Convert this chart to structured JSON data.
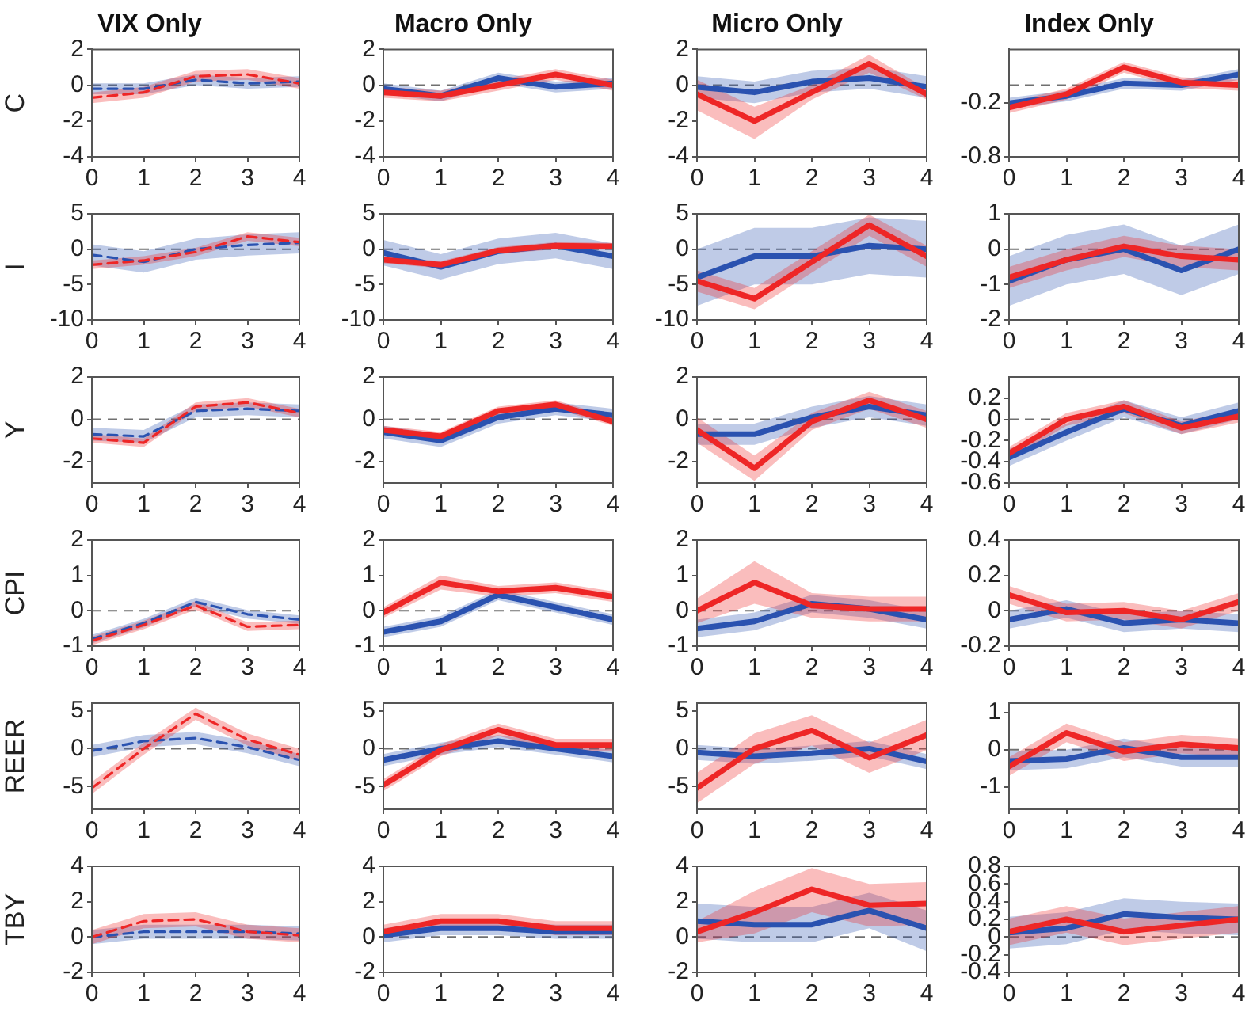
{
  "chart_data": [
    {
      "type": "line",
      "title": "VIX Only",
      "ylabel": "C",
      "x": [
        0,
        1,
        2,
        3,
        4
      ],
      "xlim": [
        0,
        4
      ],
      "xticks": [
        0,
        1,
        2,
        3,
        4
      ],
      "ylim": [
        -4,
        2
      ],
      "yticks": [
        -4,
        -2,
        0,
        2
      ],
      "line_style": "dashed",
      "ref_lines": [
        {
          "axis": "y",
          "value": 0,
          "color": "#707070",
          "line_style": "dashed"
        }
      ],
      "series": [
        {
          "color": "#2a52b0",
          "values": [
            -0.2,
            -0.2,
            0.3,
            0.1,
            0.2
          ],
          "lower": [
            -0.5,
            -0.5,
            0,
            -0.2,
            -0.1
          ],
          "upper": [
            0.1,
            0.1,
            0.6,
            0.4,
            0.5
          ]
        },
        {
          "color": "#ee2626",
          "values": [
            -0.7,
            -0.4,
            0.5,
            0.6,
            0.1
          ],
          "lower": [
            -1,
            -0.7,
            0.2,
            0.3,
            -0.2
          ],
          "upper": [
            -0.4,
            -0.1,
            0.8,
            0.9,
            0.4
          ]
        }
      ]
    },
    {
      "type": "line",
      "title": "Macro Only",
      "x": [
        0,
        1,
        2,
        3,
        4
      ],
      "xlim": [
        0,
        4
      ],
      "xticks": [
        0,
        1,
        2,
        3,
        4
      ],
      "ylim": [
        -4,
        2
      ],
      "yticks": [
        -4,
        -2,
        0,
        2
      ],
      "line_style": "solid",
      "ref_lines": [
        {
          "axis": "y",
          "value": 0,
          "color": "#707070",
          "line_style": "dashed"
        }
      ],
      "series": [
        {
          "color": "#2a52b0",
          "values": [
            -0.2,
            -0.6,
            0.4,
            -0.1,
            0.1
          ],
          "lower": [
            -0.5,
            -0.9,
            0.1,
            -0.4,
            -0.2
          ],
          "upper": [
            0.1,
            -0.3,
            0.7,
            0.2,
            0.4
          ]
        },
        {
          "color": "#ee2626",
          "values": [
            -0.4,
            -0.6,
            0,
            0.6,
            0
          ],
          "lower": [
            -0.7,
            -0.9,
            -0.3,
            0.3,
            -0.3
          ],
          "upper": [
            -0.1,
            -0.3,
            0.3,
            0.9,
            0.3
          ]
        }
      ]
    },
    {
      "type": "line",
      "title": "Micro Only",
      "x": [
        0,
        1,
        2,
        3,
        4
      ],
      "xlim": [
        0,
        4
      ],
      "xticks": [
        0,
        1,
        2,
        3,
        4
      ],
      "ylim": [
        -4,
        2
      ],
      "yticks": [
        -4,
        -2,
        0,
        2
      ],
      "line_style": "solid",
      "ref_lines": [
        {
          "axis": "y",
          "value": 0,
          "color": "#707070",
          "line_style": "dashed"
        }
      ],
      "series": [
        {
          "color": "#2a52b0",
          "values": [
            -0.1,
            -0.4,
            0.2,
            0.4,
            -0.1
          ],
          "lower": [
            -0.7,
            -1,
            -0.4,
            -0.2,
            -0.7
          ],
          "upper": [
            0.5,
            0.2,
            0.8,
            1,
            0.5
          ]
        },
        {
          "color": "#ee2626",
          "values": [
            -0.5,
            -2,
            -0.4,
            1.2,
            -0.5
          ],
          "lower": [
            -1.4,
            -3,
            -0.8,
            0.7,
            -0.8
          ],
          "upper": [
            0.3,
            -1.2,
            0,
            1.7,
            -0.2
          ]
        }
      ]
    },
    {
      "type": "line",
      "title": "Index Only",
      "x": [
        0,
        1,
        2,
        3,
        4
      ],
      "xlim": [
        0,
        4
      ],
      "xticks": [
        0,
        1,
        2,
        3,
        4
      ],
      "ylim": [
        -0.8,
        0.4
      ],
      "yticks": [
        -0.8,
        -0.2
      ],
      "line_style": "solid",
      "ref_lines": [
        {
          "axis": "y",
          "value": 0,
          "color": "#707070",
          "line_style": "dashed"
        }
      ],
      "series": [
        {
          "color": "#2a52b0",
          "values": [
            -0.2,
            -0.12,
            0.02,
            0,
            0.12
          ],
          "lower": [
            -0.26,
            -0.18,
            -0.04,
            -0.06,
            0.06
          ],
          "upper": [
            -0.14,
            -0.06,
            0.08,
            0.06,
            0.18
          ]
        },
        {
          "color": "#ee2626",
          "values": [
            -0.25,
            -0.1,
            0.2,
            0.03,
            0
          ],
          "lower": [
            -0.31,
            -0.16,
            0.14,
            -0.03,
            -0.06
          ],
          "upper": [
            -0.19,
            -0.04,
            0.26,
            0.09,
            0.06
          ]
        }
      ]
    },
    {
      "type": "line",
      "ylabel": "I",
      "x": [
        0,
        1,
        2,
        3,
        4
      ],
      "xlim": [
        0,
        4
      ],
      "xticks": [
        0,
        1,
        2,
        3,
        4
      ],
      "ylim": [
        -10,
        5
      ],
      "yticks": [
        -10,
        -5,
        0,
        5
      ],
      "line_style": "dashed",
      "ref_lines": [
        {
          "axis": "y",
          "value": 0,
          "color": "#707070",
          "line_style": "dashed"
        }
      ],
      "series": [
        {
          "color": "#2a52b0",
          "values": [
            -0.8,
            -1.8,
            0,
            0.6,
            0.9
          ],
          "lower": [
            -2.3,
            -3.3,
            -1.5,
            -0.9,
            -0.6
          ],
          "upper": [
            0.7,
            -0.3,
            1.5,
            2.1,
            2.4
          ]
        },
        {
          "color": "#ee2626",
          "values": [
            -2.2,
            -1.6,
            -0.4,
            1.8,
            1
          ],
          "lower": [
            -2.8,
            -2.2,
            -1,
            1.2,
            0.4
          ],
          "upper": [
            -1.6,
            -1,
            0.2,
            2.4,
            1.6
          ]
        }
      ]
    },
    {
      "type": "line",
      "x": [
        0,
        1,
        2,
        3,
        4
      ],
      "xlim": [
        0,
        4
      ],
      "xticks": [
        0,
        1,
        2,
        3,
        4
      ],
      "ylim": [
        -10,
        5
      ],
      "yticks": [
        -10,
        -5,
        0,
        5
      ],
      "line_style": "solid",
      "ref_lines": [
        {
          "axis": "y",
          "value": 0,
          "color": "#707070",
          "line_style": "dashed"
        }
      ],
      "series": [
        {
          "color": "#2a52b0",
          "values": [
            -0.5,
            -2.5,
            -0.3,
            0.5,
            -1
          ],
          "lower": [
            -2.3,
            -4.3,
            -2.1,
            -1.3,
            -2.8
          ],
          "upper": [
            1.3,
            -0.7,
            1.5,
            2.3,
            0.8
          ]
        },
        {
          "color": "#ee2626",
          "values": [
            -1.5,
            -2.2,
            -0.2,
            0.5,
            0.4
          ],
          "lower": [
            -2,
            -2.7,
            -0.7,
            0,
            -0.1
          ],
          "upper": [
            -1,
            -1.7,
            0.3,
            1,
            0.9
          ]
        }
      ]
    },
    {
      "type": "line",
      "x": [
        0,
        1,
        2,
        3,
        4
      ],
      "xlim": [
        0,
        4
      ],
      "xticks": [
        0,
        1,
        2,
        3,
        4
      ],
      "ylim": [
        -10,
        5
      ],
      "yticks": [
        -10,
        -5,
        0,
        5
      ],
      "line_style": "solid",
      "ref_lines": [
        {
          "axis": "y",
          "value": 0,
          "color": "#707070",
          "line_style": "dashed"
        }
      ],
      "series": [
        {
          "color": "#2a52b0",
          "values": [
            -4,
            -1,
            -1,
            0.5,
            0
          ],
          "lower": [
            -8,
            -5,
            -5,
            -3.5,
            -4
          ],
          "upper": [
            0,
            3,
            3,
            4.5,
            4
          ]
        },
        {
          "color": "#ee2626",
          "values": [
            -4.5,
            -7,
            -1.8,
            3.4,
            -1
          ],
          "lower": [
            -6,
            -8.5,
            -3.3,
            1.9,
            -2.5
          ],
          "upper": [
            -3,
            -5.5,
            -0.3,
            4.9,
            0.5
          ]
        }
      ]
    },
    {
      "type": "line",
      "x": [
        0,
        1,
        2,
        3,
        4
      ],
      "xlim": [
        0,
        4
      ],
      "xticks": [
        0,
        1,
        2,
        3,
        4
      ],
      "ylim": [
        -2,
        1
      ],
      "yticks": [
        -2,
        -1,
        0,
        1
      ],
      "line_style": "solid",
      "ref_lines": [
        {
          "axis": "y",
          "value": 0,
          "color": "#707070",
          "line_style": "dashed"
        }
      ],
      "series": [
        {
          "color": "#2a52b0",
          "values": [
            -0.9,
            -0.3,
            0,
            -0.6,
            0
          ],
          "lower": [
            -1.6,
            -1,
            -0.7,
            -1.3,
            -0.7
          ],
          "upper": [
            -0.2,
            0.4,
            0.7,
            0.1,
            0.7
          ]
        },
        {
          "color": "#ee2626",
          "values": [
            -0.8,
            -0.3,
            0.08,
            -0.2,
            -0.3
          ],
          "lower": [
            -1.1,
            -0.6,
            -0.22,
            -0.5,
            -0.6
          ],
          "upper": [
            -0.5,
            0,
            0.38,
            0.1,
            0
          ]
        }
      ]
    },
    {
      "type": "line",
      "ylabel": "Y",
      "x": [
        0,
        1,
        2,
        3,
        4
      ],
      "xlim": [
        0,
        4
      ],
      "xticks": [
        0,
        1,
        2,
        3,
        4
      ],
      "ylim": [
        -3,
        2
      ],
      "yticks": [
        -2,
        0,
        2
      ],
      "line_style": "dashed",
      "ref_lines": [
        {
          "axis": "y",
          "value": 0,
          "color": "#707070",
          "line_style": "dashed"
        }
      ],
      "series": [
        {
          "color": "#2a52b0",
          "values": [
            -0.7,
            -0.8,
            0.4,
            0.5,
            0.4
          ],
          "lower": [
            -1,
            -1.1,
            0.1,
            0.2,
            0.1
          ],
          "upper": [
            -0.4,
            -0.5,
            0.7,
            0.8,
            0.7
          ]
        },
        {
          "color": "#ee2626",
          "values": [
            -0.9,
            -1.1,
            0.6,
            0.8,
            0.3
          ],
          "lower": [
            -1.1,
            -1.3,
            0.4,
            0.6,
            0.1
          ],
          "upper": [
            -0.7,
            -0.9,
            0.8,
            1,
            0.5
          ]
        }
      ]
    },
    {
      "type": "line",
      "x": [
        0,
        1,
        2,
        3,
        4
      ],
      "xlim": [
        0,
        4
      ],
      "xticks": [
        0,
        1,
        2,
        3,
        4
      ],
      "ylim": [
        -3,
        2
      ],
      "yticks": [
        -2,
        0,
        2
      ],
      "line_style": "solid",
      "ref_lines": [
        {
          "axis": "y",
          "value": 0,
          "color": "#707070",
          "line_style": "dashed"
        }
      ],
      "series": [
        {
          "color": "#2a52b0",
          "values": [
            -0.6,
            -1,
            0.1,
            0.5,
            0.2
          ],
          "lower": [
            -0.9,
            -1.3,
            -0.2,
            0.2,
            -0.1
          ],
          "upper": [
            -0.3,
            -0.7,
            0.4,
            0.8,
            0.5
          ]
        },
        {
          "color": "#ee2626",
          "values": [
            -0.5,
            -0.8,
            0.4,
            0.7,
            -0.1
          ],
          "lower": [
            -0.7,
            -1,
            0.2,
            0.5,
            -0.3
          ],
          "upper": [
            -0.3,
            -0.6,
            0.6,
            0.9,
            0.1
          ]
        }
      ]
    },
    {
      "type": "line",
      "x": [
        0,
        1,
        2,
        3,
        4
      ],
      "xlim": [
        0,
        4
      ],
      "xticks": [
        0,
        1,
        2,
        3,
        4
      ],
      "ylim": [
        -3,
        2
      ],
      "yticks": [
        -2,
        0,
        2
      ],
      "line_style": "solid",
      "ref_lines": [
        {
          "axis": "y",
          "value": 0,
          "color": "#707070",
          "line_style": "dashed"
        }
      ],
      "series": [
        {
          "color": "#2a52b0",
          "values": [
            -0.7,
            -0.7,
            0.1,
            0.6,
            0.2
          ],
          "lower": [
            -1.2,
            -1.2,
            -0.4,
            0.1,
            -0.3
          ],
          "upper": [
            -0.2,
            -0.2,
            0.6,
            1.1,
            0.7
          ]
        },
        {
          "color": "#ee2626",
          "values": [
            -0.5,
            -2.3,
            -0.1,
            0.9,
            0
          ],
          "lower": [
            -1.1,
            -2.9,
            -0.5,
            0.5,
            -0.4
          ],
          "upper": [
            0.1,
            -1.7,
            0.3,
            1.3,
            0.4
          ]
        }
      ]
    },
    {
      "type": "line",
      "x": [
        0,
        1,
        2,
        3,
        4
      ],
      "xlim": [
        0,
        4
      ],
      "xticks": [
        0,
        1,
        2,
        3,
        4
      ],
      "ylim": [
        -0.6,
        0.4
      ],
      "yticks": [
        -0.6,
        -0.4,
        -0.2,
        0,
        0.2
      ],
      "line_style": "solid",
      "ref_lines": [
        {
          "axis": "y",
          "value": 0,
          "color": "#707070",
          "line_style": "dashed"
        }
      ],
      "series": [
        {
          "color": "#2a52b0",
          "values": [
            -0.36,
            -0.12,
            0.1,
            -0.06,
            0.08
          ],
          "lower": [
            -0.44,
            -0.2,
            0.02,
            -0.14,
            0
          ],
          "upper": [
            -0.28,
            -0.04,
            0.18,
            0.02,
            0.16
          ]
        },
        {
          "color": "#ee2626",
          "values": [
            -0.32,
            0,
            0.12,
            -0.08,
            0.03
          ],
          "lower": [
            -0.38,
            -0.06,
            0.06,
            -0.14,
            -0.03
          ],
          "upper": [
            -0.26,
            0.06,
            0.18,
            -0.02,
            0.09
          ]
        }
      ]
    },
    {
      "type": "line",
      "ylabel": "CPI",
      "x": [
        0,
        1,
        2,
        3,
        4
      ],
      "xlim": [
        0,
        4
      ],
      "xticks": [
        0,
        1,
        2,
        3,
        4
      ],
      "ylim": [
        -1,
        2
      ],
      "yticks": [
        -1,
        0,
        1,
        2
      ],
      "line_style": "dashed",
      "ref_lines": [
        {
          "axis": "y",
          "value": 0,
          "color": "#707070",
          "line_style": "dashed"
        }
      ],
      "series": [
        {
          "color": "#2a52b0",
          "values": [
            -0.8,
            -0.35,
            0.25,
            -0.1,
            -0.25
          ],
          "lower": [
            -0.92,
            -0.47,
            0.13,
            -0.22,
            -0.37
          ],
          "upper": [
            -0.68,
            -0.23,
            0.37,
            0.02,
            -0.13
          ]
        },
        {
          "color": "#ee2626",
          "values": [
            -0.85,
            -0.4,
            0.15,
            -0.45,
            -0.4
          ],
          "lower": [
            -0.97,
            -0.52,
            0.03,
            -0.57,
            -0.52
          ],
          "upper": [
            -0.73,
            -0.28,
            0.27,
            -0.33,
            -0.28
          ]
        }
      ]
    },
    {
      "type": "line",
      "x": [
        0,
        1,
        2,
        3,
        4
      ],
      "xlim": [
        0,
        4
      ],
      "xticks": [
        0,
        1,
        2,
        3,
        4
      ],
      "ylim": [
        -1,
        2
      ],
      "yticks": [
        -1,
        0,
        1,
        2
      ],
      "line_style": "solid",
      "ref_lines": [
        {
          "axis": "y",
          "value": 0,
          "color": "#707070",
          "line_style": "dashed"
        }
      ],
      "series": [
        {
          "color": "#2a52b0",
          "values": [
            -0.6,
            -0.3,
            0.45,
            0.1,
            -0.25
          ],
          "lower": [
            -0.75,
            -0.45,
            0.3,
            -0.05,
            -0.4
          ],
          "upper": [
            -0.45,
            -0.15,
            0.6,
            0.25,
            -0.1
          ]
        },
        {
          "color": "#ee2626",
          "values": [
            -0.05,
            0.8,
            0.55,
            0.65,
            0.4
          ],
          "lower": [
            -0.2,
            0.6,
            0.4,
            0.5,
            0.25
          ],
          "upper": [
            0.1,
            1,
            0.7,
            0.8,
            0.55
          ]
        }
      ]
    },
    {
      "type": "line",
      "x": [
        0,
        1,
        2,
        3,
        4
      ],
      "xlim": [
        0,
        4
      ],
      "xticks": [
        0,
        1,
        2,
        3,
        4
      ],
      "ylim": [
        -1,
        2
      ],
      "yticks": [
        -1,
        0,
        1,
        2
      ],
      "line_style": "solid",
      "ref_lines": [
        {
          "axis": "y",
          "value": 0,
          "color": "#707070",
          "line_style": "dashed"
        }
      ],
      "series": [
        {
          "color": "#2a52b0",
          "values": [
            -0.5,
            -0.3,
            0.2,
            0.05,
            -0.25
          ],
          "lower": [
            -0.75,
            -0.55,
            -0.05,
            -0.2,
            -0.5
          ],
          "upper": [
            -0.25,
            -0.05,
            0.45,
            0.3,
            0
          ]
        },
        {
          "color": "#ee2626",
          "values": [
            0,
            0.8,
            0.15,
            0.05,
            0.05
          ],
          "lower": [
            -0.35,
            0.2,
            -0.2,
            -0.3,
            -0.3
          ],
          "upper": [
            0.35,
            1.4,
            0.5,
            0.4,
            0.4
          ]
        }
      ]
    },
    {
      "type": "line",
      "x": [
        0,
        1,
        2,
        3,
        4
      ],
      "xlim": [
        0,
        4
      ],
      "xticks": [
        0,
        1,
        2,
        3,
        4
      ],
      "ylim": [
        -0.2,
        0.4
      ],
      "yticks": [
        -0.2,
        0,
        0.2,
        0.4
      ],
      "line_style": "solid",
      "ref_lines": [
        {
          "axis": "y",
          "value": 0,
          "color": "#707070",
          "line_style": "dashed"
        }
      ],
      "series": [
        {
          "color": "#2a52b0",
          "values": [
            -0.05,
            0.01,
            -0.07,
            -0.05,
            -0.07
          ],
          "lower": [
            -0.1,
            -0.04,
            -0.12,
            -0.1,
            -0.12
          ],
          "upper": [
            0,
            0.06,
            -0.02,
            0,
            -0.02
          ]
        },
        {
          "color": "#ee2626",
          "values": [
            0.09,
            -0.01,
            0,
            -0.05,
            0.05
          ],
          "lower": [
            0.04,
            -0.06,
            -0.05,
            -0.1,
            0
          ],
          "upper": [
            0.14,
            0.04,
            0.05,
            0,
            0.1
          ]
        }
      ]
    },
    {
      "type": "line",
      "ylabel": "REER",
      "x": [
        0,
        1,
        2,
        3,
        4
      ],
      "xlim": [
        0,
        4
      ],
      "xticks": [
        0,
        1,
        2,
        3,
        4
      ],
      "ylim": [
        -8,
        6
      ],
      "yticks": [
        -5,
        0,
        5
      ],
      "line_style": "dashed",
      "ref_lines": [
        {
          "axis": "y",
          "value": 0,
          "color": "#707070",
          "line_style": "dashed"
        }
      ],
      "series": [
        {
          "color": "#2a52b0",
          "values": [
            -0.3,
            1,
            1.4,
            0.2,
            -1.5
          ],
          "lower": [
            -1.1,
            0.2,
            0.6,
            -0.6,
            -2.3
          ],
          "upper": [
            0.5,
            1.8,
            2.2,
            1,
            -0.7
          ]
        },
        {
          "color": "#ee2626",
          "values": [
            -5.2,
            0,
            4.6,
            1.2,
            -0.8
          ],
          "lower": [
            -6,
            -0.8,
            3.8,
            0.4,
            -1.6
          ],
          "upper": [
            -4.4,
            0.8,
            5.4,
            2,
            0
          ]
        }
      ]
    },
    {
      "type": "line",
      "x": [
        0,
        1,
        2,
        3,
        4
      ],
      "xlim": [
        0,
        4
      ],
      "xticks": [
        0,
        1,
        2,
        3,
        4
      ],
      "ylim": [
        -8,
        6
      ],
      "yticks": [
        -5,
        0,
        5
      ],
      "line_style": "solid",
      "ref_lines": [
        {
          "axis": "y",
          "value": 0,
          "color": "#707070",
          "line_style": "dashed"
        }
      ],
      "series": [
        {
          "color": "#2a52b0",
          "values": [
            -1.5,
            0,
            1,
            0,
            -1
          ],
          "lower": [
            -2.3,
            -0.8,
            0.2,
            -0.8,
            -1.8
          ],
          "upper": [
            -0.7,
            0.8,
            1.8,
            0.8,
            -0.2
          ]
        },
        {
          "color": "#ee2626",
          "values": [
            -4.8,
            -0.2,
            2.5,
            0.5,
            0.5
          ],
          "lower": [
            -5.6,
            -1,
            1.7,
            -0.3,
            -0.3
          ],
          "upper": [
            -4,
            0.6,
            3.3,
            1.3,
            1.3
          ]
        }
      ]
    },
    {
      "type": "line",
      "x": [
        0,
        1,
        2,
        3,
        4
      ],
      "xlim": [
        0,
        4
      ],
      "xticks": [
        0,
        1,
        2,
        3,
        4
      ],
      "ylim": [
        -8,
        6
      ],
      "yticks": [
        -5,
        0,
        5
      ],
      "line_style": "solid",
      "ref_lines": [
        {
          "axis": "y",
          "value": 0,
          "color": "#707070",
          "line_style": "dashed"
        }
      ],
      "series": [
        {
          "color": "#2a52b0",
          "values": [
            -0.5,
            -1,
            -0.6,
            0,
            -1.7
          ],
          "lower": [
            -1.5,
            -2,
            -1.6,
            -1,
            -2.7
          ],
          "upper": [
            0.5,
            0,
            0.4,
            1,
            -0.7
          ]
        },
        {
          "color": "#ee2626",
          "values": [
            -5.2,
            0,
            2.4,
            -1.2,
            1.8
          ],
          "lower": [
            -7.2,
            -2,
            0.4,
            -3.2,
            -0.2
          ],
          "upper": [
            -3.2,
            2,
            4.4,
            0.8,
            3.8
          ]
        }
      ]
    },
    {
      "type": "line",
      "x": [
        0,
        1,
        2,
        3,
        4
      ],
      "xlim": [
        0,
        4
      ],
      "xticks": [
        0,
        1,
        2,
        3,
        4
      ],
      "ylim": [
        -1.6,
        1.25
      ],
      "yticks": [
        -1,
        0,
        1
      ],
      "line_style": "solid",
      "ref_lines": [
        {
          "axis": "y",
          "value": 0,
          "color": "#707070",
          "line_style": "dashed"
        }
      ],
      "series": [
        {
          "color": "#2a52b0",
          "values": [
            -0.3,
            -0.25,
            0.05,
            -0.2,
            -0.2
          ],
          "lower": [
            -0.55,
            -0.5,
            -0.2,
            -0.45,
            -0.45
          ],
          "upper": [
            -0.05,
            0,
            0.3,
            0.05,
            0.05
          ]
        },
        {
          "color": "#ee2626",
          "values": [
            -0.45,
            0.45,
            -0.05,
            0.15,
            0.05
          ],
          "lower": [
            -0.7,
            0.2,
            -0.3,
            -0.1,
            -0.2
          ],
          "upper": [
            -0.2,
            0.7,
            0.2,
            0.4,
            0.3
          ]
        }
      ]
    },
    {
      "type": "line",
      "ylabel": "TBY",
      "x": [
        0,
        1,
        2,
        3,
        4
      ],
      "xlim": [
        0,
        4
      ],
      "xticks": [
        0,
        1,
        2,
        3,
        4
      ],
      "ylim": [
        -2,
        4
      ],
      "yticks": [
        -2,
        0,
        2,
        4
      ],
      "line_style": "dashed",
      "ref_lines": [
        {
          "axis": "y",
          "value": 0,
          "color": "#707070",
          "line_style": "dashed"
        }
      ],
      "series": [
        {
          "color": "#2a52b0",
          "values": [
            0,
            0.3,
            0.3,
            0.3,
            0.2
          ],
          "lower": [
            -0.4,
            -0.1,
            -0.1,
            -0.1,
            -0.2
          ],
          "upper": [
            0.4,
            0.7,
            0.7,
            0.7,
            0.6
          ]
        },
        {
          "color": "#ee2626",
          "values": [
            0,
            0.9,
            1,
            0.3,
            0.1
          ],
          "lower": [
            -0.4,
            0.5,
            0.6,
            -0.1,
            -0.3
          ],
          "upper": [
            0.4,
            1.3,
            1.4,
            0.7,
            0.5
          ]
        }
      ]
    },
    {
      "type": "line",
      "x": [
        0,
        1,
        2,
        3,
        4
      ],
      "xlim": [
        0,
        4
      ],
      "xticks": [
        0,
        1,
        2,
        3,
        4
      ],
      "ylim": [
        -2,
        4
      ],
      "yticks": [
        -2,
        0,
        2,
        4
      ],
      "line_style": "solid",
      "ref_lines": [
        {
          "axis": "y",
          "value": 0,
          "color": "#707070",
          "line_style": "dashed"
        }
      ],
      "series": [
        {
          "color": "#2a52b0",
          "values": [
            0.1,
            0.5,
            0.5,
            0.3,
            0.3
          ],
          "lower": [
            -0.3,
            0.1,
            0.1,
            -0.1,
            -0.1
          ],
          "upper": [
            0.5,
            0.9,
            0.9,
            0.7,
            0.7
          ]
        },
        {
          "color": "#ee2626",
          "values": [
            0.3,
            0.9,
            0.9,
            0.5,
            0.5
          ],
          "lower": [
            -0.1,
            0.5,
            0.5,
            0.1,
            0.1
          ],
          "upper": [
            0.7,
            1.3,
            1.3,
            0.9,
            0.9
          ]
        }
      ]
    },
    {
      "type": "line",
      "x": [
        0,
        1,
        2,
        3,
        4
      ],
      "xlim": [
        0,
        4
      ],
      "xticks": [
        0,
        1,
        2,
        3,
        4
      ],
      "ylim": [
        -2,
        4
      ],
      "yticks": [
        -2,
        0,
        2,
        4
      ],
      "line_style": "solid",
      "ref_lines": [
        {
          "axis": "y",
          "value": 0,
          "color": "#707070",
          "line_style": "dashed"
        }
      ],
      "series": [
        {
          "color": "#2a52b0",
          "values": [
            0.9,
            0.7,
            0.7,
            1.5,
            0.5
          ],
          "lower": [
            -0.1,
            -0.3,
            -0.3,
            0.5,
            -0.8
          ],
          "upper": [
            1.9,
            1.7,
            1.7,
            2.5,
            1.5
          ]
        },
        {
          "color": "#ee2626",
          "values": [
            0.3,
            1.4,
            2.7,
            1.8,
            1.9
          ],
          "lower": [
            -0.3,
            0.2,
            1.4,
            0.6,
            0.7
          ],
          "upper": [
            0.9,
            2.6,
            3.9,
            3,
            3.1
          ]
        }
      ]
    },
    {
      "type": "line",
      "x": [
        0,
        1,
        2,
        3,
        4
      ],
      "xlim": [
        0,
        4
      ],
      "xticks": [
        0,
        1,
        2,
        3,
        4
      ],
      "ylim": [
        -0.4,
        0.8
      ],
      "yticks": [
        -0.4,
        -0.2,
        0,
        0.2,
        0.4,
        0.6,
        0.8
      ],
      "line_style": "solid",
      "ref_lines": [
        {
          "axis": "y",
          "value": 0,
          "color": "#707070",
          "line_style": "dashed"
        }
      ],
      "series": [
        {
          "color": "#2a52b0",
          "values": [
            0.05,
            0.1,
            0.26,
            0.22,
            0.2
          ],
          "lower": [
            -0.13,
            -0.08,
            0.08,
            0.04,
            0.02
          ],
          "upper": [
            0.23,
            0.28,
            0.44,
            0.4,
            0.38
          ]
        },
        {
          "color": "#ee2626",
          "values": [
            0.06,
            0.2,
            0.06,
            0.13,
            0.2
          ],
          "lower": [
            -0.09,
            0.05,
            -0.09,
            -0.02,
            0.05
          ],
          "upper": [
            0.21,
            0.35,
            0.21,
            0.28,
            0.35
          ]
        }
      ]
    }
  ]
}
